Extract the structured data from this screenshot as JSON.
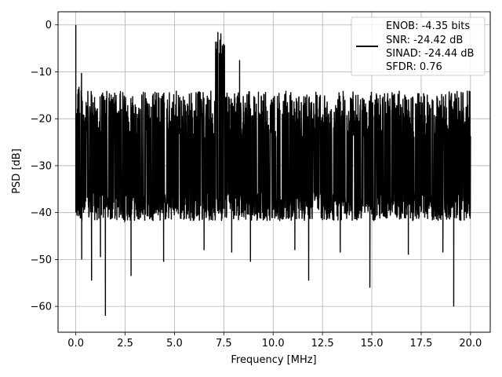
{
  "chart_data": {
    "type": "line",
    "xlabel": "Frequency [MHz]",
    "ylabel": "PSD [dB]",
    "xlim": [
      -0.9,
      21.0
    ],
    "ylim": [
      -65.5,
      2.8
    ],
    "grid": true,
    "legend_placement": "top-right",
    "xticks": [
      0.0,
      2.5,
      5.0,
      7.5,
      10.0,
      12.5,
      15.0,
      17.5,
      20.0
    ],
    "xtick_labels": [
      "0.0",
      "2.5",
      "5.0",
      "7.5",
      "10.0",
      "12.5",
      "15.0",
      "17.5",
      "20.0"
    ],
    "yticks": [
      0,
      -10,
      -20,
      -30,
      -40,
      -50,
      -60
    ],
    "ytick_labels": [
      "0",
      "−10",
      "−20",
      "−30",
      "−40",
      "−50",
      "−60"
    ],
    "series": [
      {
        "color": "#000000",
        "legend_lines": [
          "ENOB: -4.35 bits",
          "SNR: -24.42 dB",
          "SINAD: -24.44 dB",
          "SFDR: 0.76"
        ],
        "x_range": [
          0.0,
          20.0
        ],
        "points": 2000,
        "noise_floor_upper_db": -14,
        "noise_floor_lower_db": -40,
        "peaks": [
          {
            "x": 0.0,
            "y": 0
          },
          {
            "x": 7.2,
            "y": -1.5
          },
          {
            "x": 7.35,
            "y": -1.8
          },
          {
            "x": 8.3,
            "y": -7.5
          }
        ],
        "dips": [
          {
            "x": 0.3,
            "y": -50
          },
          {
            "x": 0.8,
            "y": -54.5
          },
          {
            "x": 1.25,
            "y": -49.5
          },
          {
            "x": 1.5,
            "y": -62
          },
          {
            "x": 2.8,
            "y": -53.5
          },
          {
            "x": 4.45,
            "y": -50.5
          },
          {
            "x": 6.5,
            "y": -48
          },
          {
            "x": 7.9,
            "y": -48.5
          },
          {
            "x": 8.85,
            "y": -50.5
          },
          {
            "x": 11.1,
            "y": -48
          },
          {
            "x": 11.8,
            "y": -54.5
          },
          {
            "x": 13.4,
            "y": -48.5
          },
          {
            "x": 14.9,
            "y": -56
          },
          {
            "x": 16.85,
            "y": -49
          },
          {
            "x": 18.6,
            "y": -48.5
          },
          {
            "x": 19.15,
            "y": -60
          }
        ]
      }
    ]
  }
}
